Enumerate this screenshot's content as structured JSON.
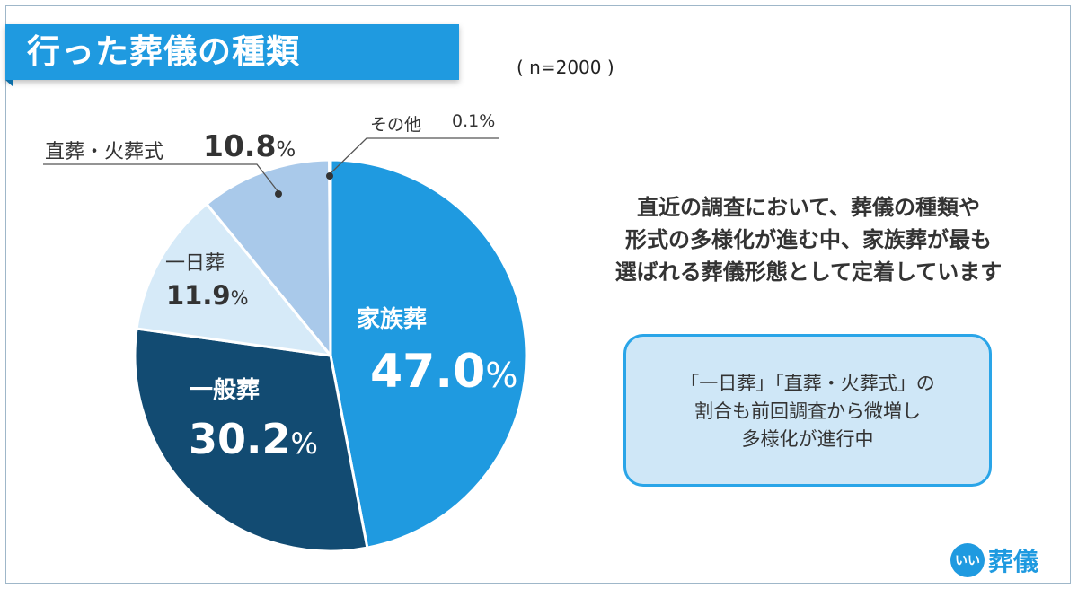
{
  "title": "行った葬儀の種類",
  "sample_note": "( n=2000 )",
  "chart_data": {
    "type": "pie",
    "start_angle_deg": 0,
    "direction": "clockwise",
    "slices": [
      {
        "label": "家族葬",
        "value": 47.0,
        "value_text": "47.0",
        "color": "#1f9ae0"
      },
      {
        "label": "一般葬",
        "value": 30.2,
        "value_text": "30.2",
        "color": "#124b72"
      },
      {
        "label": "一日葬",
        "value": 11.9,
        "value_text": "11.9",
        "color": "#d6eaf8"
      },
      {
        "label": "直葬・火葬式",
        "value": 10.8,
        "value_text": "10.8",
        "color": "#a9c9ea"
      },
      {
        "label": "その他",
        "value": 0.1,
        "value_text": "0.1",
        "color": "#8fb4d9"
      }
    ],
    "percent_sign": "%"
  },
  "description_lines": [
    "直近の調査において、葬儀の種類や",
    "形式の多様化が進む中、家族葬が最も",
    "選ばれる葬儀形態として定着しています"
  ],
  "callout_lines": [
    "「一日葬」「直葬・火葬式」の",
    "割合も前回調査から微増し",
    "多様化が進行中"
  ],
  "logo": {
    "mark": "いい",
    "text": "葬儀"
  }
}
